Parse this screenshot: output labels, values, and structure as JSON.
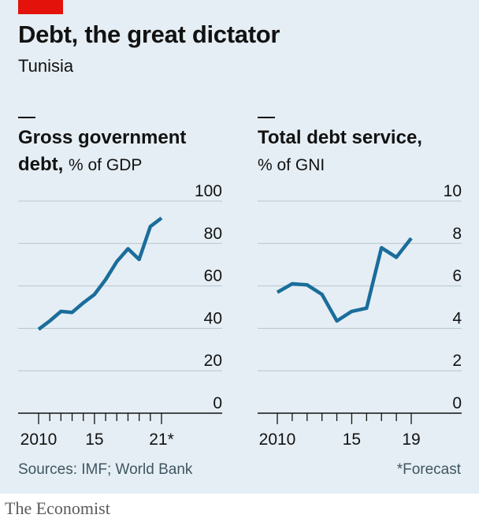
{
  "header": {
    "title": "Debt, the great dictator",
    "subtitle": "Tunisia"
  },
  "footer": {
    "sources": "Sources: IMF; World Bank",
    "note": "*Forecast",
    "brand": "The Economist"
  },
  "colors": {
    "background": "#e5eef4",
    "line": "#1a6d9b",
    "accent_red": "#e3120b",
    "grid": "#b7c5cd"
  },
  "chart_data": [
    {
      "type": "line",
      "title_bold": "Gross government debt,",
      "title_line1": "Gross government",
      "title_line2_bold": "debt,",
      "title_unit": "% of GDP",
      "xlabel": "",
      "ylabel": "",
      "x": [
        2010,
        2011,
        2012,
        2013,
        2014,
        2015,
        2016,
        2017,
        2018,
        2019,
        2020,
        2021
      ],
      "values": [
        39.5,
        43.5,
        48,
        47.5,
        52,
        56,
        63,
        71.5,
        77.5,
        72.5,
        88,
        92
      ],
      "ylim": [
        0,
        100
      ],
      "yticks": [
        0,
        20,
        40,
        60,
        80,
        100
      ],
      "xlim": [
        2010,
        2021
      ],
      "xtick_labels": [
        {
          "x": 2010,
          "label": "2010"
        },
        {
          "x": 2015,
          "label": "15"
        },
        {
          "x": 2021,
          "label": "21*"
        }
      ],
      "grid": true
    },
    {
      "type": "line",
      "title_line1_bold": "Total debt service,",
      "title_unit": "% of GNI",
      "xlabel": "",
      "ylabel": "",
      "x": [
        2010,
        2011,
        2012,
        2013,
        2014,
        2015,
        2016,
        2017,
        2018,
        2019
      ],
      "values": [
        5.7,
        6.1,
        6.05,
        5.6,
        4.35,
        4.8,
        4.95,
        7.8,
        7.35,
        8.25
      ],
      "ylim": [
        0,
        10
      ],
      "yticks": [
        0,
        2,
        4,
        6,
        8,
        10
      ],
      "xlim": [
        2010,
        2019
      ],
      "xtick_labels": [
        {
          "x": 2010,
          "label": "2010"
        },
        {
          "x": 2015,
          "label": "15"
        },
        {
          "x": 2019,
          "label": "19"
        }
      ],
      "grid": true
    }
  ]
}
